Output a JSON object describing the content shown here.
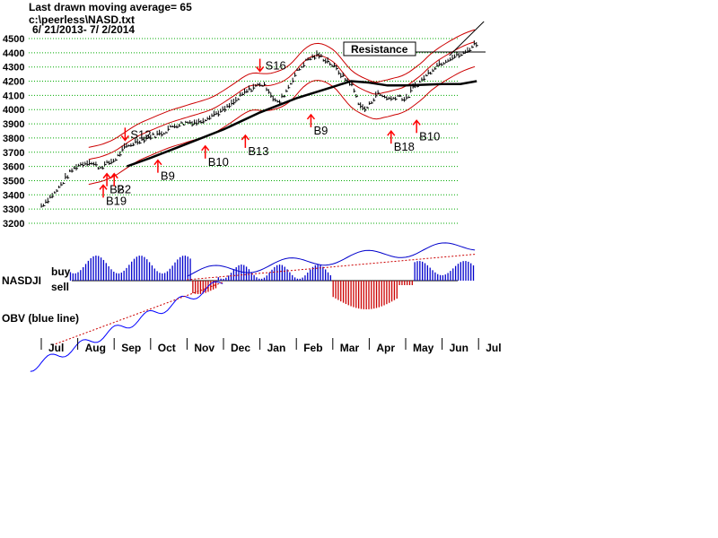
{
  "header": {
    "line1": "Last drawn moving average= 65",
    "line2": "c:\\peerless\\NASD.txt",
    "line3": "6/ 21/2013- 7/ 2/2014"
  },
  "resistance_label": "Resistance",
  "indicator_labels": {
    "nasdji": "NASDJI",
    "buy": "buy",
    "sell": "sell",
    "obv": "OBV (blue line)"
  },
  "colors": {
    "price": "#000000",
    "band": "#cc0000",
    "grid": "#00aa00",
    "osc_pos": "#0000cc",
    "osc_neg": "#cc0000",
    "obv": "#0000ff",
    "obv_ma": "#cc0000",
    "signal": "#ff0000"
  },
  "chart_data": {
    "type": "line",
    "title": "",
    "ylim": [
      3200,
      4500
    ],
    "yticks": [
      4500,
      4400,
      4300,
      4200,
      4100,
      4000,
      3900,
      3800,
      3700,
      3600,
      3500,
      3400,
      3300,
      3200
    ],
    "months": [
      "Jul",
      "Aug",
      "Sep",
      "Oct",
      "Nov",
      "Dec",
      "Jan",
      "Feb",
      "Mar",
      "Apr",
      "May",
      "Jun",
      "Jul"
    ],
    "price_trend": [
      [
        0.0,
        3320
      ],
      [
        0.4,
        3420
      ],
      [
        0.8,
        3560
      ],
      [
        1.0,
        3605
      ],
      [
        1.3,
        3630
      ],
      [
        1.6,
        3590
      ],
      [
        2.0,
        3640
      ],
      [
        2.3,
        3730
      ],
      [
        2.6,
        3770
      ],
      [
        3.0,
        3810
      ],
      [
        3.3,
        3830
      ],
      [
        3.6,
        3880
      ],
      [
        4.0,
        3910
      ],
      [
        4.3,
        3905
      ],
      [
        4.6,
        3950
      ],
      [
        5.0,
        3990
      ],
      [
        5.3,
        4050
      ],
      [
        5.6,
        4120
      ],
      [
        6.0,
        4180
      ],
      [
        6.2,
        4150
      ],
      [
        6.35,
        4080
      ],
      [
        6.5,
        4040
      ],
      [
        6.7,
        4120
      ],
      [
        7.0,
        4260
      ],
      [
        7.3,
        4350
      ],
      [
        7.6,
        4380
      ],
      [
        7.9,
        4330
      ],
      [
        8.1,
        4280
      ],
      [
        8.3,
        4220
      ],
      [
        8.5,
        4180
      ],
      [
        8.7,
        4050
      ],
      [
        8.85,
        3990
      ],
      [
        9.0,
        4030
      ],
      [
        9.2,
        4110
      ],
      [
        9.4,
        4090
      ],
      [
        9.6,
        4070
      ],
      [
        9.8,
        4100
      ],
      [
        10.0,
        4060
      ],
      [
        10.2,
        4150
      ],
      [
        10.5,
        4220
      ],
      [
        10.8,
        4300
      ],
      [
        11.2,
        4360
      ],
      [
        11.6,
        4390
      ],
      [
        11.9,
        4460
      ]
    ],
    "moving_average_65": [
      [
        2.35,
        3600
      ],
      [
        3.0,
        3660
      ],
      [
        4.0,
        3760
      ],
      [
        5.0,
        3860
      ],
      [
        6.0,
        3980
      ],
      [
        7.0,
        4080
      ],
      [
        8.0,
        4160
      ],
      [
        8.5,
        4200
      ],
      [
        9.0,
        4190
      ],
      [
        9.5,
        4170
      ],
      [
        10.0,
        4170
      ],
      [
        10.5,
        4175
      ],
      [
        11.0,
        4180
      ],
      [
        11.5,
        4180
      ],
      [
        11.95,
        4200
      ]
    ],
    "annotations": [
      {
        "label": "S12",
        "x": 2.3,
        "y": 3835,
        "arrow": "down"
      },
      {
        "label": "S16",
        "x": 6.0,
        "y": 4320,
        "arrow": "down"
      },
      {
        "label": "B19",
        "x": 1.7,
        "y": 3330,
        "arrow": "up"
      },
      {
        "label": "B2",
        "x": 1.8,
        "y": 3410,
        "arrow": "up"
      },
      {
        "label": "B2",
        "x": 2.0,
        "y": 3410,
        "arrow": "up"
      },
      {
        "label": "B9",
        "x": 3.2,
        "y": 3505,
        "arrow": "up"
      },
      {
        "label": "B10",
        "x": 4.5,
        "y": 3605,
        "arrow": "up"
      },
      {
        "label": "B13",
        "x": 5.6,
        "y": 3680,
        "arrow": "up"
      },
      {
        "label": "B9",
        "x": 7.4,
        "y": 3825,
        "arrow": "up"
      },
      {
        "label": "B18",
        "x": 9.6,
        "y": 3710,
        "arrow": "up"
      },
      {
        "label": "B10",
        "x": 10.3,
        "y": 3785,
        "arrow": "up"
      }
    ]
  }
}
